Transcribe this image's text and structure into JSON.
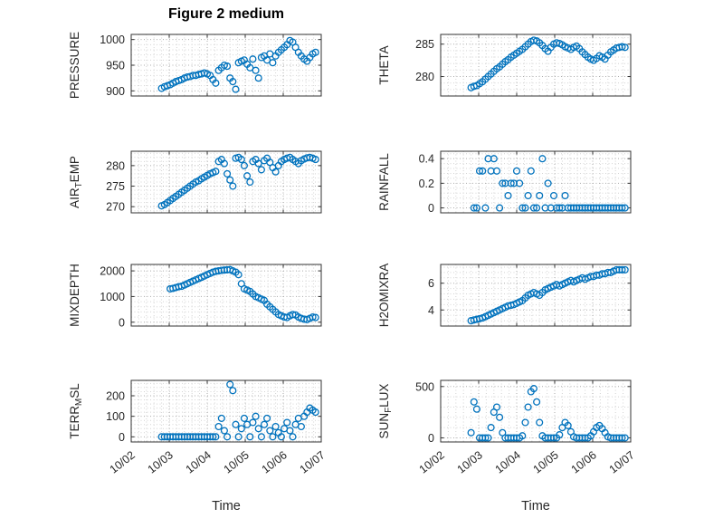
{
  "chart_data": {
    "type": "scatter",
    "title": "Figure 2 medium",
    "xlabel": "Time",
    "xlim": [
      2,
      7
    ],
    "x_ticks": [
      2,
      3,
      4,
      5,
      6,
      7
    ],
    "x_tick_labels": [
      "10/02",
      "10/03",
      "10/04",
      "10/05",
      "10/06",
      "10/07"
    ],
    "marker_color": "#0072BD",
    "axes_color": "#333333",
    "major_grid_color": "#ababab",
    "minor_grid_color": "#d4d4d4",
    "x": [
      2.8,
      2.875,
      2.95,
      3.025,
      3.1,
      3.175,
      3.25,
      3.325,
      3.4,
      3.475,
      3.55,
      3.625,
      3.7,
      3.775,
      3.85,
      3.925,
      4.0,
      4.075,
      4.15,
      4.225,
      4.3,
      4.375,
      4.45,
      4.525,
      4.6,
      4.675,
      4.75,
      4.825,
      4.9,
      4.975,
      5.05,
      5.125,
      5.2,
      5.275,
      5.35,
      5.425,
      5.5,
      5.575,
      5.65,
      5.725,
      5.8,
      5.875,
      5.95,
      6.025,
      6.1,
      6.175,
      6.25,
      6.325,
      6.4,
      6.475,
      6.55,
      6.625,
      6.7,
      6.775,
      6.85
    ],
    "subplots": [
      {
        "name": "pressure",
        "row": 0,
        "col": 0,
        "label_parts": [
          {
            "t": "PRESSURE"
          }
        ],
        "ylim": [
          890,
          1010
        ],
        "yticks": [
          900,
          950,
          1000
        ],
        "ytick_labels": [
          "900",
          "950",
          "1000"
        ],
        "y": [
          905,
          908,
          910,
          912,
          915,
          918,
          920,
          922,
          925,
          927,
          928,
          930,
          930,
          932,
          933,
          935,
          933,
          930,
          922,
          915,
          940,
          945,
          950,
          948,
          925,
          918,
          903,
          955,
          958,
          960,
          952,
          945,
          962,
          940,
          925,
          965,
          968,
          960,
          972,
          955,
          968,
          975,
          980,
          985,
          990,
          998,
          995,
          985,
          975,
          968,
          962,
          958,
          965,
          972,
          975
        ]
      },
      {
        "name": "theta",
        "row": 0,
        "col": 1,
        "label_parts": [
          {
            "t": "THETA"
          }
        ],
        "ylim": [
          277,
          286.5
        ],
        "yticks": [
          280,
          285
        ],
        "ytick_labels": [
          "280",
          "285"
        ],
        "y": [
          278.3,
          278.5,
          278.6,
          278.9,
          279.2,
          279.6,
          280.0,
          280.4,
          280.8,
          281.2,
          281.5,
          281.9,
          282.3,
          282.6,
          283.0,
          283.3,
          283.6,
          283.9,
          284.2,
          284.6,
          285.0,
          285.4,
          285.6,
          285.5,
          285.2,
          284.8,
          284.3,
          283.9,
          284.5,
          285.0,
          285.2,
          285.1,
          284.9,
          284.6,
          284.4,
          284.2,
          284.5,
          284.7,
          284.3,
          283.8,
          283.4,
          283.0,
          282.7,
          282.5,
          282.8,
          283.2,
          283.0,
          282.7,
          283.3,
          283.8,
          284.1,
          284.4,
          284.5,
          284.6,
          284.5
        ]
      },
      {
        "name": "air-temp",
        "row": 1,
        "col": 0,
        "label_parts": [
          {
            "t": "AIR"
          },
          {
            "t": "T",
            "sub": true
          },
          {
            "t": "EMP"
          }
        ],
        "ylim": [
          268.5,
          283.5
        ],
        "yticks": [
          270,
          275,
          280
        ],
        "ytick_labels": [
          "270",
          "275",
          "280"
        ],
        "y": [
          270.2,
          270.5,
          271.0,
          271.5,
          272.0,
          272.5,
          273.0,
          273.5,
          274.0,
          274.5,
          275.0,
          275.5,
          276.0,
          276.3,
          276.8,
          277.2,
          277.6,
          278.0,
          278.3,
          278.6,
          281.0,
          281.5,
          280.5,
          278.0,
          276.5,
          275.0,
          281.8,
          282.0,
          281.5,
          280.0,
          277.5,
          276.0,
          281.0,
          281.5,
          280.5,
          279.0,
          281.2,
          281.8,
          280.8,
          279.5,
          278.5,
          280.0,
          281.0,
          281.5,
          281.8,
          282.0,
          281.5,
          281.0,
          280.5,
          281.2,
          281.6,
          281.9,
          282.0,
          281.8,
          281.5
        ]
      },
      {
        "name": "rainfall",
        "row": 1,
        "col": 1,
        "label_parts": [
          {
            "t": "RAINFALL"
          }
        ],
        "ylim": [
          -0.04,
          0.46
        ],
        "yticks": [
          0,
          0.2,
          0.4
        ],
        "ytick_labels": [
          "0",
          "0.2",
          "0.4"
        ],
        "y": [
          null,
          0,
          0,
          0.3,
          0.3,
          0,
          0.4,
          0.3,
          0.4,
          0.3,
          0,
          0.2,
          0.2,
          0.1,
          0.2,
          0.2,
          0.3,
          0.2,
          0,
          0,
          0.1,
          0.3,
          0,
          0,
          0.1,
          0.4,
          0,
          0.2,
          0,
          0.1,
          0,
          0,
          0,
          0.1,
          0,
          0,
          0,
          0,
          0,
          0,
          0,
          0,
          0,
          0,
          0,
          0,
          0,
          0,
          0,
          0,
          0,
          0,
          0,
          0,
          0
        ]
      },
      {
        "name": "mixdepth",
        "row": 2,
        "col": 0,
        "label_parts": [
          {
            "t": "MIXDEPTH"
          }
        ],
        "ylim": [
          -150,
          2250
        ],
        "yticks": [
          0,
          1000,
          2000
        ],
        "ytick_labels": [
          "0",
          "1000",
          "2000"
        ],
        "y": [
          null,
          null,
          null,
          1300,
          1320,
          1350,
          1380,
          1400,
          1450,
          1500,
          1550,
          1600,
          1650,
          1700,
          1750,
          1800,
          1850,
          1900,
          1950,
          1980,
          2000,
          2020,
          2030,
          2040,
          2050,
          2000,
          1950,
          1850,
          1500,
          1300,
          1250,
          1200,
          1100,
          1000,
          950,
          900,
          850,
          700,
          600,
          500,
          400,
          300,
          250,
          200,
          180,
          250,
          300,
          280,
          200,
          150,
          120,
          100,
          150,
          200,
          180
        ]
      },
      {
        "name": "h2omixra",
        "row": 2,
        "col": 1,
        "label_parts": [
          {
            "t": "H2OMIXRA"
          }
        ],
        "ylim": [
          2.8,
          7.4
        ],
        "yticks": [
          4,
          6
        ],
        "ytick_labels": [
          "4",
          "6"
        ],
        "y": [
          3.2,
          3.25,
          3.3,
          3.35,
          3.4,
          3.5,
          3.6,
          3.7,
          3.8,
          3.9,
          4.0,
          4.1,
          4.2,
          4.3,
          4.35,
          4.4,
          4.5,
          4.6,
          4.7,
          4.9,
          5.1,
          5.2,
          5.3,
          5.2,
          5.1,
          5.3,
          5.5,
          5.6,
          5.7,
          5.8,
          5.9,
          5.8,
          5.9,
          6.0,
          6.1,
          6.2,
          6.1,
          6.2,
          6.3,
          6.4,
          6.3,
          6.4,
          6.5,
          6.5,
          6.6,
          6.6,
          6.7,
          6.7,
          6.8,
          6.8,
          6.9,
          7.0,
          7.0,
          7.0,
          7.0
        ]
      },
      {
        "name": "terr-msl",
        "row": 3,
        "col": 0,
        "label_parts": [
          {
            "t": "TERR"
          },
          {
            "t": "M",
            "sub": true
          },
          {
            "t": "SL"
          }
        ],
        "ylim": [
          -25,
          275
        ],
        "yticks": [
          0,
          100,
          200
        ],
        "ytick_labels": [
          "0",
          "100",
          "200"
        ],
        "y": [
          0,
          0,
          0,
          0,
          0,
          0,
          0,
          0,
          0,
          0,
          0,
          0,
          0,
          0,
          0,
          0,
          0,
          0,
          0,
          0,
          50,
          90,
          30,
          0,
          255,
          225,
          60,
          0,
          40,
          90,
          60,
          0,
          70,
          100,
          40,
          0,
          60,
          90,
          30,
          0,
          50,
          20,
          0,
          40,
          70,
          30,
          0,
          60,
          90,
          50,
          100,
          120,
          140,
          130,
          120
        ]
      },
      {
        "name": "sun-flux",
        "row": 3,
        "col": 1,
        "label_parts": [
          {
            "t": "SUN"
          },
          {
            "t": "F",
            "sub": true
          },
          {
            "t": "LUX"
          }
        ],
        "ylim": [
          -40,
          560
        ],
        "yticks": [
          0,
          500
        ],
        "ytick_labels": [
          "0",
          "500"
        ],
        "y": [
          50,
          350,
          280,
          0,
          0,
          0,
          0,
          100,
          250,
          300,
          200,
          50,
          0,
          0,
          0,
          0,
          0,
          0,
          20,
          150,
          300,
          450,
          480,
          350,
          150,
          20,
          0,
          0,
          0,
          0,
          0,
          30,
          100,
          150,
          120,
          60,
          10,
          0,
          0,
          0,
          0,
          0,
          20,
          60,
          100,
          120,
          90,
          50,
          10,
          0,
          0,
          0,
          0,
          0,
          0
        ]
      }
    ]
  }
}
